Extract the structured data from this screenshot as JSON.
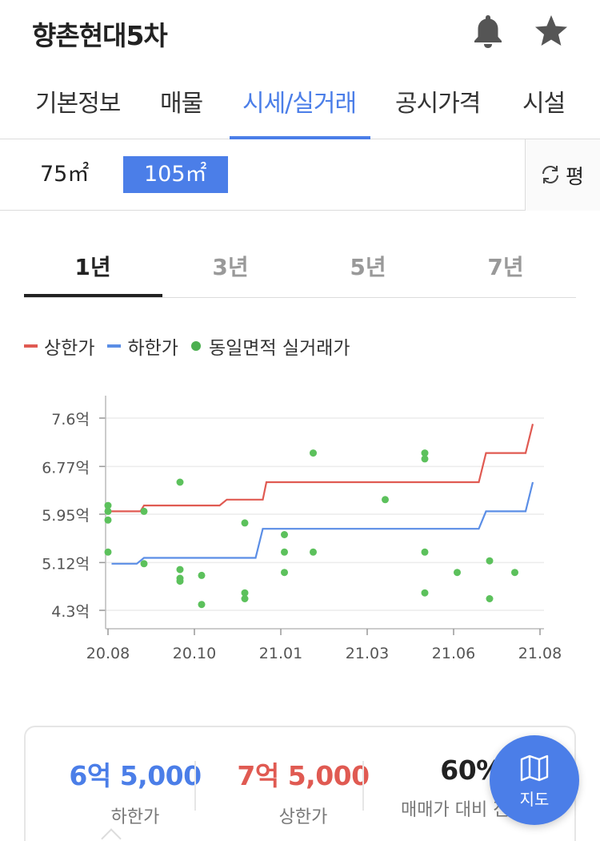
{
  "header": {
    "title": "향촌현대5차",
    "icons": [
      "bell-icon",
      "star-icon"
    ]
  },
  "tabs": [
    {
      "label": "기본정보",
      "active": false
    },
    {
      "label": "매물",
      "active": false
    },
    {
      "label": "시세/실거래",
      "active": true
    },
    {
      "label": "공시가격",
      "active": false
    },
    {
      "label": "시설",
      "active": false
    }
  ],
  "sizes": [
    {
      "label": "75㎡",
      "selected": false
    },
    {
      "label": "105㎡",
      "selected": true
    }
  ],
  "unit_toggle": {
    "label": "평",
    "icon": "refresh-icon"
  },
  "periods": [
    {
      "label": "1년",
      "active": true
    },
    {
      "label": "3년",
      "active": false
    },
    {
      "label": "5년",
      "active": false
    },
    {
      "label": "7년",
      "active": false
    }
  ],
  "legend": {
    "upper": "상한가",
    "lower": "하한가",
    "deals": "동일면적 실거래가"
  },
  "colors": {
    "accent": "#4b7ee8",
    "upper": "#e05a52",
    "lower": "#5b8ee6",
    "deals": "#5cc15c"
  },
  "chart_data": {
    "type": "line",
    "x_ticks": [
      "20.08",
      "20.10",
      "21.01",
      "21.03",
      "21.06",
      "21.08"
    ],
    "y_ticks": [
      "7.6억",
      "6.77억",
      "5.95억",
      "5.12억",
      "4.3억"
    ],
    "y_tick_values": [
      7.6,
      6.77,
      5.95,
      5.12,
      4.3
    ],
    "ylim": [
      4.3,
      7.6
    ],
    "xlim": [
      0,
      12
    ],
    "series": [
      {
        "name": "상한가",
        "color": "#e05a52",
        "kind": "step",
        "points": [
          [
            0.0,
            6.0
          ],
          [
            0.9,
            6.0
          ],
          [
            1.0,
            6.1
          ],
          [
            3.1,
            6.1
          ],
          [
            3.3,
            6.2
          ],
          [
            4.3,
            6.2
          ],
          [
            4.4,
            6.5
          ],
          [
            10.3,
            6.5
          ],
          [
            10.5,
            7.0
          ],
          [
            11.6,
            7.0
          ],
          [
            11.8,
            7.5
          ]
        ]
      },
      {
        "name": "하한가",
        "color": "#5b8ee6",
        "kind": "step",
        "points": [
          [
            0.1,
            5.1
          ],
          [
            0.8,
            5.1
          ],
          [
            1.0,
            5.2
          ],
          [
            4.1,
            5.2
          ],
          [
            4.3,
            5.7
          ],
          [
            10.3,
            5.7
          ],
          [
            10.5,
            6.0
          ],
          [
            11.6,
            6.0
          ],
          [
            11.8,
            6.5
          ]
        ]
      },
      {
        "name": "동일면적 실거래가",
        "color": "#5cc15c",
        "kind": "scatter",
        "points": [
          [
            0.0,
            6.1
          ],
          [
            0.0,
            6.0
          ],
          [
            0.0,
            5.85
          ],
          [
            0.0,
            5.3
          ],
          [
            1.0,
            6.0
          ],
          [
            1.0,
            5.1
          ],
          [
            2.0,
            6.5
          ],
          [
            2.0,
            5.0
          ],
          [
            2.0,
            4.85
          ],
          [
            2.0,
            4.8
          ],
          [
            2.6,
            4.9
          ],
          [
            2.6,
            4.4
          ],
          [
            3.8,
            5.8
          ],
          [
            3.8,
            4.6
          ],
          [
            3.8,
            4.5
          ],
          [
            4.9,
            5.6
          ],
          [
            4.9,
            5.3
          ],
          [
            4.9,
            4.95
          ],
          [
            5.7,
            7.0
          ],
          [
            5.7,
            5.3
          ],
          [
            7.7,
            6.2
          ],
          [
            8.8,
            7.0
          ],
          [
            8.8,
            6.9
          ],
          [
            8.8,
            5.3
          ],
          [
            8.8,
            4.6
          ],
          [
            9.7,
            4.95
          ],
          [
            10.6,
            5.15
          ],
          [
            10.6,
            4.5
          ],
          [
            11.3,
            4.95
          ]
        ]
      }
    ]
  },
  "summary": [
    {
      "value": "6억 5,000",
      "label": "하한가",
      "color": "#4b7ee8"
    },
    {
      "value": "7억 5,000",
      "label": "상한가",
      "color": "#e05a52"
    },
    {
      "value": "60%",
      "label": "매매가 대비 전세가",
      "color": "#222222"
    }
  ],
  "fab": {
    "label": "지도",
    "icon": "map-icon"
  }
}
